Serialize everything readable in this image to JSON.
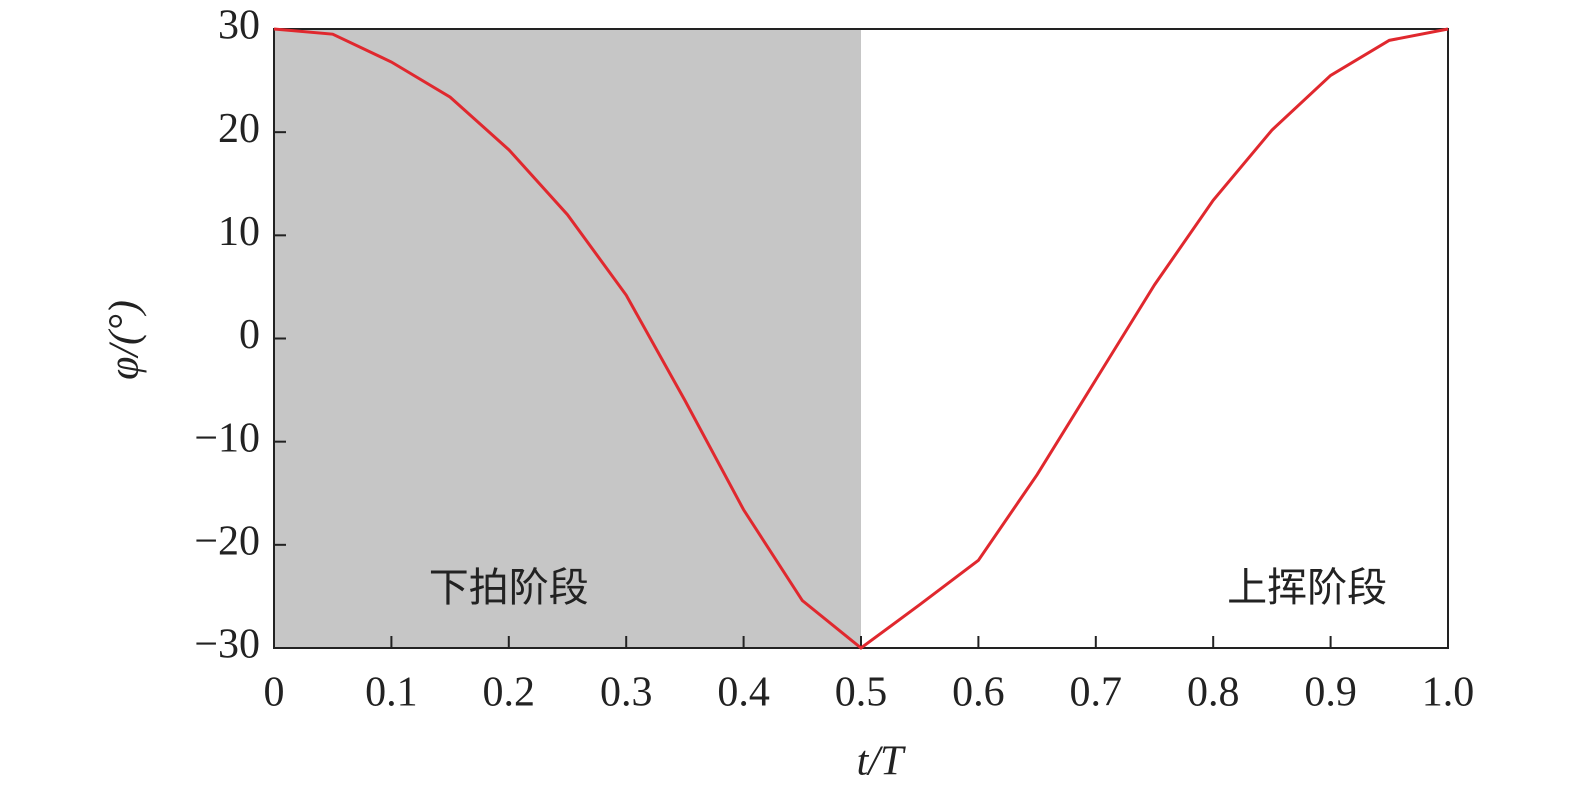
{
  "chart_data": {
    "type": "line",
    "x_label": "t/T",
    "y_label": "φ/(°)",
    "annotations": [
      "下拍阶段",
      "上挥阶段"
    ],
    "shade": {
      "xlim": [
        0,
        0.5
      ],
      "color": "#c6c6c6"
    },
    "x": [
      0,
      0.05,
      0.1,
      0.15,
      0.2,
      0.25,
      0.3,
      0.35,
      0.4,
      0.45,
      0.5,
      0.55,
      0.6,
      0.65,
      0.7,
      0.75,
      0.8,
      0.85,
      0.9,
      0.95,
      1.0
    ],
    "series": [
      {
        "name": "φ",
        "color": "#e0282e",
        "values": [
          30,
          29.5,
          26.8,
          23.4,
          18.3,
          12,
          4.2,
          -6,
          -16.6,
          -25.4,
          -30,
          -25.8,
          -21.5,
          -13.2,
          -4,
          5.2,
          13.4,
          20.2,
          25.5,
          28.9,
          30
        ]
      }
    ],
    "xlim": [
      0,
      1
    ],
    "ylim": [
      -30,
      30
    ],
    "xticks": [
      0,
      0.1,
      0.2,
      0.3,
      0.4,
      0.5,
      0.6,
      0.7,
      0.8,
      0.9,
      {
        "value": 1,
        "label": "1.0"
      }
    ],
    "yticks": [
      {
        "value": -30,
        "label": "−30"
      },
      {
        "value": -20,
        "label": "−20"
      },
      {
        "value": -10,
        "label": "−10"
      },
      0,
      10,
      20,
      30
    ],
    "grid": false
  }
}
